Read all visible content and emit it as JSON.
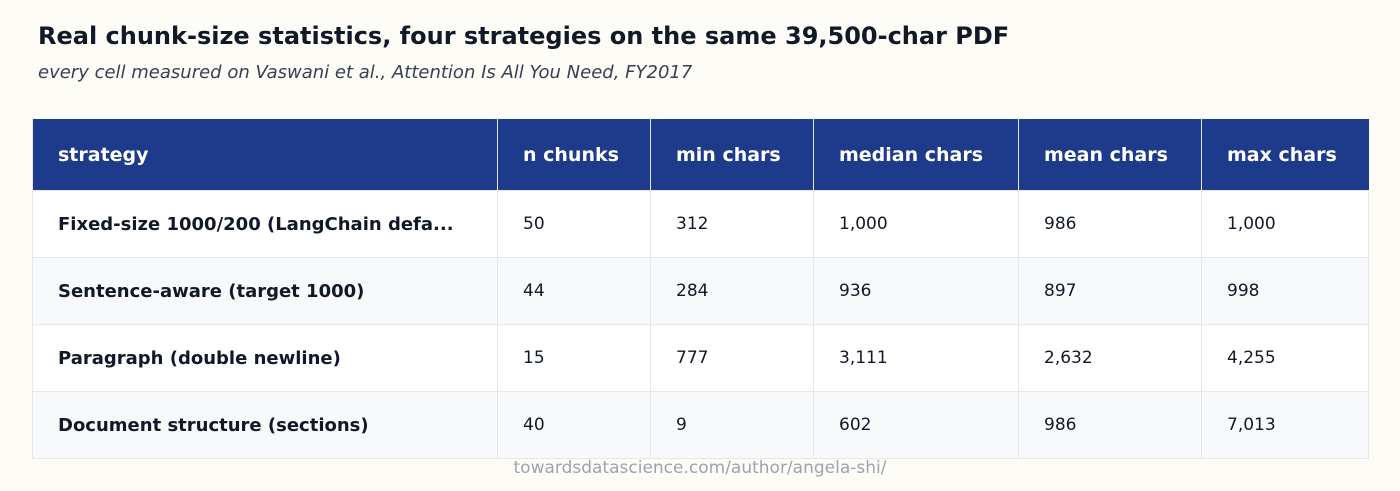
{
  "header": {
    "title": "Real chunk-size statistics, four strategies on the same 39,500-char PDF",
    "subtitle": "every cell measured on Vaswani et al., Attention Is All You Need, FY2017"
  },
  "table": {
    "columns": [
      "strategy",
      "n chunks",
      "min chars",
      "median chars",
      "mean chars",
      "max chars"
    ],
    "rows": [
      [
        "Fixed-size 1000/200 (LangChain defa...",
        "50",
        "312",
        "1,000",
        "986",
        "1,000"
      ],
      [
        "Sentence-aware (target 1000)",
        "44",
        "284",
        "936",
        "897",
        "998"
      ],
      [
        "Paragraph (double newline)",
        "15",
        "777",
        "3,111",
        "2,632",
        "4,255"
      ],
      [
        "Document structure (sections)",
        "40",
        "9",
        "602",
        "986",
        "7,013"
      ]
    ]
  },
  "footer": {
    "credit": "towardsdatascience.com/author/angela-shi/"
  }
}
